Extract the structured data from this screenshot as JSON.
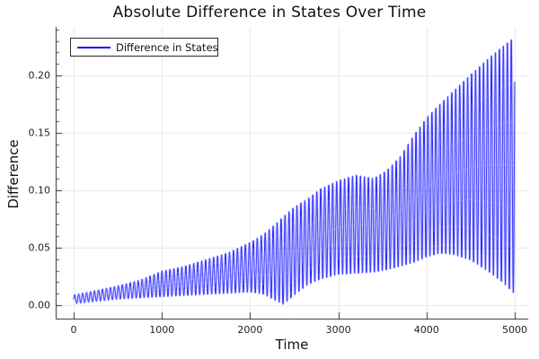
{
  "title": "Absolute Difference in States Over Time",
  "legend": {
    "label": "Difference in States",
    "line_color": "#0000ff"
  },
  "colors": {
    "series": "#0000ff",
    "grid": "#e7e7e7",
    "spine": "#2b2b2b",
    "text": "#1f1f1f",
    "background": "#ffffff"
  },
  "chart_data": {
    "type": "line",
    "title": "Absolute Difference in States Over Time",
    "xlabel": "Time",
    "ylabel": "Difference",
    "xlim": [
      -204,
      5153
    ],
    "ylim": [
      -0.0117,
      0.2422
    ],
    "xticks": [
      0,
      1000,
      2000,
      3000,
      4000,
      5000
    ],
    "xtick_labels": [
      "0",
      "1000",
      "2000",
      "3000",
      "4000",
      "5000"
    ],
    "yticks": [
      0.0,
      0.05,
      0.1,
      0.15,
      0.2
    ],
    "ytick_labels": [
      "0.00",
      "0.05",
      "0.10",
      "0.15",
      "0.20"
    ],
    "y_minor_tick_step": 0.01,
    "grid": true,
    "legend_position": "top-left",
    "series": [
      {
        "name": "Difference in States",
        "color": "#0000ff",
        "description": "High-frequency oscillation |x1-x2| filling the band between lower and upper envelopes",
        "oscillation_period": 45,
        "sample_step": 2.5,
        "t_range": [
          0,
          5000
        ],
        "envelope": {
          "t": [
            0,
            250,
            500,
            750,
            1000,
            1250,
            1500,
            1750,
            2000,
            2150,
            2300,
            2380,
            2500,
            2650,
            2800,
            3000,
            3200,
            3400,
            3550,
            3700,
            3850,
            4000,
            4150,
            4300,
            4500,
            4700,
            4850,
            5000
          ],
          "upper": [
            0.009,
            0.013,
            0.017,
            0.022,
            0.03,
            0.034,
            0.04,
            0.046,
            0.055,
            0.062,
            0.072,
            0.078,
            0.086,
            0.093,
            0.102,
            0.109,
            0.114,
            0.111,
            0.118,
            0.13,
            0.148,
            0.164,
            0.176,
            0.187,
            0.202,
            0.216,
            0.226,
            0.235
          ],
          "lower": [
            0.001,
            0.003,
            0.005,
            0.006,
            0.007,
            0.008,
            0.009,
            0.01,
            0.011,
            0.009,
            0.003,
            0.0,
            0.008,
            0.017,
            0.022,
            0.026,
            0.027,
            0.028,
            0.03,
            0.033,
            0.036,
            0.041,
            0.044,
            0.043,
            0.038,
            0.028,
            0.019,
            0.008
          ]
        }
      }
    ]
  }
}
